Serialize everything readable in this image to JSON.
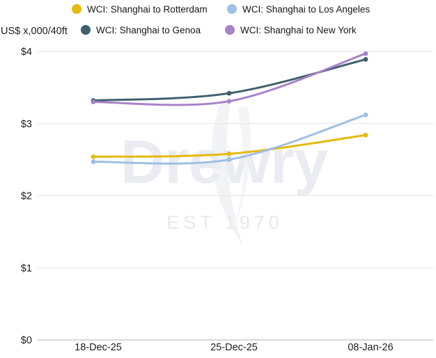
{
  "header": {
    "unit_label": "US$ x,000/40ft"
  },
  "legend": [
    {
      "label": "WCI: Shanghai to Rotterdam",
      "color": "#e5b90f"
    },
    {
      "label": "WCI: Shanghai to Los Angeles",
      "color": "#9fbfe4"
    },
    {
      "label": "WCI: Shanghai to Genoa",
      "color": "#40606e"
    },
    {
      "label": "WCI: Shanghai to New York",
      "color": "#a783c9"
    }
  ],
  "watermark": {
    "name": "Drewry",
    "est": "EST 1970"
  },
  "chart_data": {
    "type": "line",
    "title": "",
    "ylabel": "US$ x,000/40ft",
    "x": [
      "18-Dec-25",
      "25-Dec-25",
      "08-Jan-26"
    ],
    "series": [
      {
        "name": "WCI: Shanghai to Rotterdam",
        "color": "#e5b90f",
        "values": [
          2.54,
          2.58,
          2.84
        ]
      },
      {
        "name": "WCI: Shanghai to Los Angeles",
        "color": "#9fbfe4",
        "values": [
          2.47,
          2.5,
          3.12
        ]
      },
      {
        "name": "WCI: Shanghai to Genoa",
        "color": "#40606e",
        "values": [
          3.32,
          3.42,
          3.89
        ]
      },
      {
        "name": "WCI: Shanghai to New York",
        "color": "#a783c9",
        "values": [
          3.3,
          3.31,
          3.97
        ]
      }
    ],
    "yticks": [
      "$4",
      "$3",
      "$2",
      "$1",
      "$0"
    ],
    "ytick_values": [
      4,
      3,
      2,
      1,
      0
    ],
    "ylim": [
      0,
      4.14
    ],
    "grid": "horizontal",
    "legend_position": "top",
    "markers": "round-dots"
  }
}
